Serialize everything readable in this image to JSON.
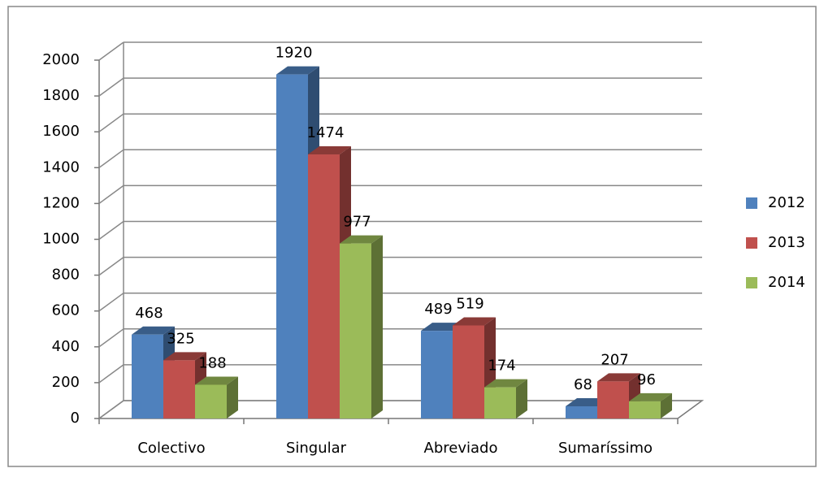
{
  "chart_data": {
    "type": "bar",
    "categories": [
      "Colectivo",
      "Singular",
      "Abreviado",
      "Sumaríssimo"
    ],
    "series": [
      {
        "name": "2012",
        "color": "#4f81bd",
        "values": [
          468,
          1920,
          489,
          68
        ]
      },
      {
        "name": "2013",
        "color": "#c0504d",
        "values": [
          325,
          1474,
          519,
          207
        ]
      },
      {
        "name": "2014",
        "color": "#9bbb59",
        "values": [
          188,
          977,
          174,
          96
        ]
      }
    ],
    "ylim": [
      0,
      2000
    ],
    "yticks": [
      0,
      200,
      400,
      600,
      800,
      1000,
      1200,
      1400,
      1600,
      1800,
      2000
    ],
    "grid": true,
    "legend": "right"
  }
}
